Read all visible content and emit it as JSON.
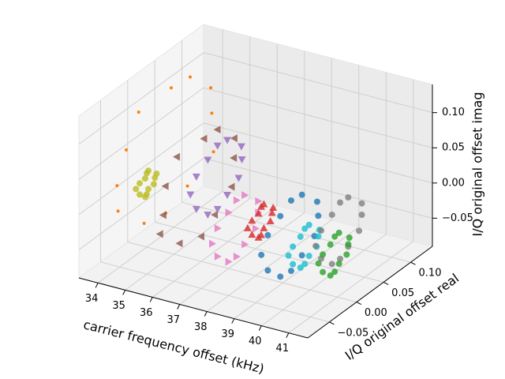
{
  "chart_data": {
    "type": "scatter3d",
    "xlabel": "carrier frequency offset (kHz)",
    "ylabel": "I/Q original offset real",
    "zlabel": "I/Q original offset imag",
    "xlim": [
      33.3,
      41.7
    ],
    "ylim": [
      -0.09,
      0.14
    ],
    "zlim": [
      -0.09,
      0.14
    ],
    "xticks": [
      34,
      35,
      36,
      37,
      38,
      39,
      40,
      41
    ],
    "yticks": [
      {
        "value": -0.05,
        "label": "−0.05"
      },
      {
        "value": 0,
        "label": "0.00"
      },
      0.05,
      {
        "value": 0.1,
        "label": "0.10"
      }
    ],
    "zticks": [
      {
        "value": -0.05,
        "label": "−0.05"
      },
      {
        "value": 0,
        "label": "0.00"
      },
      0.05,
      {
        "value": 0.1,
        "label": "0.10"
      }
    ],
    "grid": true,
    "series": [
      {
        "color": "#ff7f0e",
        "marker": ".",
        "x": [
          34.2,
          34.4,
          34.3,
          34.5,
          34.2,
          34.4,
          34.3,
          34.1,
          34.4,
          34.3,
          34.2,
          34.5
        ],
        "y": [
          0.11,
          0.098,
          0.065,
          0.02,
          -0.025,
          -0.058,
          -0.07,
          -0.058,
          -0.025,
          0.02,
          0.065,
          0.098
        ],
        "z": [
          0.04,
          0.085,
          0.118,
          0.13,
          0.118,
          0.085,
          0.04,
          -0.005,
          -0.038,
          -0.05,
          -0.038,
          -0.005
        ]
      },
      {
        "color": "#bcbd22",
        "marker": "o",
        "x": [
          34.0,
          34.1,
          33.9,
          34.0,
          34.1,
          34.0,
          33.9,
          34.0,
          34.1,
          34.0,
          33.9,
          34.0
        ],
        "y": [
          0.015,
          0.013,
          0.008,
          0,
          -0.008,
          -0.013,
          -0.015,
          -0.013,
          -0.008,
          0,
          0.008,
          0.013
        ],
        "z": [
          0,
          0.008,
          0.013,
          0.015,
          0.013,
          0.008,
          0,
          -0.008,
          -0.013,
          -0.015,
          -0.013,
          -0.008
        ]
      },
      {
        "color": "#8c564b",
        "marker": "<",
        "x": [
          35.4,
          35.6,
          35.5,
          35.7,
          35.4,
          35.5,
          35.6,
          35.3,
          35.5,
          35.6,
          35.4,
          35.5
        ],
        "y": [
          0.09,
          0.081,
          0.055,
          0.02,
          -0.015,
          -0.041,
          -0.05,
          -0.041,
          -0.015,
          0.02,
          0.055,
          0.081
        ],
        "z": [
          0,
          0.035,
          0.061,
          0.07,
          0.061,
          0.035,
          0,
          -0.035,
          -0.061,
          -0.07,
          -0.061,
          -0.035
        ]
      },
      {
        "color": "#9467bd",
        "marker": "v",
        "x": [
          36.2,
          36.3,
          36.1,
          36.2,
          36.3,
          36.2,
          36.1,
          36.2,
          36.3,
          36.2,
          36.1,
          36.2
        ],
        "y": [
          0.065,
          0.059,
          0.043,
          0.02,
          -0.003,
          -0.019,
          -0.025,
          -0.019,
          -0.003,
          0.02,
          0.043,
          0.059
        ],
        "z": [
          0.02,
          0.043,
          0.059,
          0.065,
          0.059,
          0.043,
          0.02,
          -0.003,
          -0.019,
          -0.025,
          -0.019,
          -0.003
        ]
      },
      {
        "color": "#e377c2",
        "marker": ">",
        "x": [
          37.3,
          37.4,
          37.2,
          37.3,
          37.4,
          37.3,
          37.2,
          37.3,
          37.4,
          37.3,
          37.2,
          37.3
        ],
        "y": [
          0.04,
          0.035,
          0.02,
          0,
          -0.02,
          -0.035,
          -0.04,
          -0.035,
          -0.02,
          0,
          0.02,
          0.035
        ],
        "z": [
          -0.03,
          -0.01,
          0.005,
          0.01,
          0.005,
          -0.01,
          -0.03,
          -0.05,
          -0.065,
          -0.07,
          -0.065,
          -0.05
        ]
      },
      {
        "color": "#d62728",
        "marker": "^",
        "x": [
          38.2,
          38.3,
          38.1,
          38.2,
          38.3,
          38.2,
          38.1,
          38.2,
          38.3,
          38.2,
          38.1,
          38.2
        ],
        "y": [
          0.02,
          0.017,
          0.01,
          0,
          -0.01,
          -0.017,
          -0.02,
          -0.017,
          -0.01,
          0,
          0.01,
          0.017
        ],
        "z": [
          -0.01,
          0,
          0.007,
          0.01,
          0.007,
          0,
          -0.01,
          -0.02,
          -0.027,
          -0.03,
          -0.027,
          -0.02
        ]
      },
      {
        "color": "#1f77b4",
        "marker": "o",
        "x": [
          39.3,
          39.4,
          39.2,
          39.3,
          39.4,
          39.3,
          39.2,
          39.3,
          39.4,
          39.3,
          39.2,
          39.3
        ],
        "y": [
          0.05,
          0.043,
          0.025,
          0,
          -0.025,
          -0.043,
          -0.05,
          -0.043,
          -0.025,
          0,
          0.025,
          0.043
        ],
        "z": [
          -0.02,
          0.005,
          0.023,
          0.03,
          0.023,
          0.005,
          -0.02,
          -0.045,
          -0.063,
          -0.07,
          -0.063,
          -0.045
        ]
      },
      {
        "color": "#17becf",
        "marker": "o",
        "x": [
          39.8,
          39.9,
          39.7,
          39.8,
          39.9,
          39.8,
          39.7,
          39.8,
          39.9,
          39.8,
          39.7,
          39.8
        ],
        "y": [
          0.025,
          0.022,
          0.013,
          0,
          -0.013,
          -0.022,
          -0.025,
          -0.022,
          -0.013,
          0,
          0.013,
          0.022
        ],
        "z": [
          -0.03,
          -0.018,
          -0.008,
          -0.005,
          -0.008,
          -0.018,
          -0.03,
          -0.043,
          -0.052,
          -0.055,
          -0.052,
          -0.043
        ]
      },
      {
        "color": "#7f7f7f",
        "marker": "o",
        "x": [
          40.7,
          40.8,
          40.6,
          40.7,
          40.8,
          40.7,
          40.6,
          40.7,
          40.8,
          40.7,
          40.6,
          40.7
        ],
        "y": [
          0.06,
          0.055,
          0.04,
          0.02,
          0,
          -0.015,
          -0.02,
          -0.015,
          0,
          0.02,
          0.04,
          0.055
        ],
        "z": [
          -0.01,
          0.01,
          0.025,
          0.03,
          0.025,
          0.01,
          -0.01,
          -0.03,
          -0.045,
          -0.05,
          -0.045,
          -0.03
        ]
      },
      {
        "color": "#2ca02c",
        "marker": "o",
        "x": [
          40.9,
          41.0,
          40.8,
          40.9,
          41.0,
          40.9,
          40.8,
          40.9,
          41.0,
          40.9,
          40.8,
          40.9
        ],
        "y": [
          0.025,
          0.022,
          0.013,
          0,
          -0.013,
          -0.022,
          -0.025,
          -0.022,
          -0.013,
          0,
          0.013,
          0.022
        ],
        "z": [
          -0.03,
          -0.018,
          -0.008,
          -0.005,
          -0.008,
          -0.018,
          -0.03,
          -0.043,
          -0.052,
          -0.055,
          -0.052,
          -0.043
        ]
      }
    ]
  }
}
